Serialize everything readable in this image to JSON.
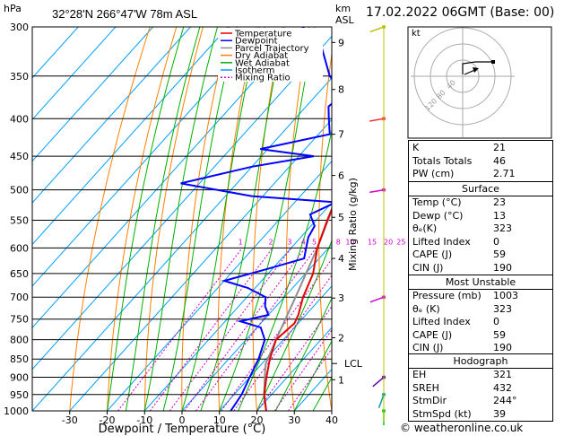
{
  "station": {
    "location": "32°28'N  266°47'W  78m  ASL",
    "datetime": "17.02.2022  06GMT  (Base: 00)",
    "copyright": "© weatheronline.co.uk"
  },
  "legend": [
    {
      "label": "Temperature",
      "color": "#e00000",
      "dash": ""
    },
    {
      "label": "Dewpoint",
      "color": "#0000ff",
      "dash": ""
    },
    {
      "label": "Parcel Trajectory",
      "color": "#909090",
      "dash": ""
    },
    {
      "label": "Dry Adiabat",
      "color": "#ff8000",
      "dash": ""
    },
    {
      "label": "Wet Adiabat",
      "color": "#00b000",
      "dash": ""
    },
    {
      "label": "Isotherm",
      "color": "#00a0ff",
      "dash": ""
    },
    {
      "label": "Mixing Ratio",
      "color": "#d000d0",
      "dash": "2,2"
    }
  ],
  "indices": [
    {
      "label": "K",
      "value": "21"
    },
    {
      "label": "Totals Totals",
      "value": "46"
    },
    {
      "label": "PW (cm)",
      "value": "2.71"
    }
  ],
  "surface": {
    "title": "Surface",
    "rows": [
      {
        "label": "Temp (°C)",
        "value": "23"
      },
      {
        "label": "Dewp (°C)",
        "value": "13"
      },
      {
        "label": "θₑ(K)",
        "value": "323"
      },
      {
        "label": "Lifted Index",
        "value": "0"
      },
      {
        "label": "CAPE (J)",
        "value": "59"
      },
      {
        "label": "CIN (J)",
        "value": "190"
      }
    ]
  },
  "most_unstable": {
    "title": "Most Unstable",
    "rows": [
      {
        "label": "Pressure (mb)",
        "value": "1003"
      },
      {
        "label": "θₑ (K)",
        "value": "323"
      },
      {
        "label": "Lifted Index",
        "value": "0"
      },
      {
        "label": "CAPE (J)",
        "value": "59"
      },
      {
        "label": "CIN (J)",
        "value": "190"
      }
    ]
  },
  "hodograph": {
    "title": "Hodograph",
    "label": "kt",
    "ring_labels": [
      "40",
      "80",
      "120"
    ],
    "rows": [
      {
        "label": "EH",
        "value": "321"
      },
      {
        "label": "SREH",
        "value": "432"
      },
      {
        "label": "StmDir",
        "value": "244°"
      },
      {
        "label": "StmSpd (kt)",
        "value": "39"
      }
    ]
  },
  "chart_data": {
    "type": "skew-t",
    "xlabel": "Dewpoint / Temperature (°C)",
    "ylabel_left": "hPa",
    "ylabel_right": "Mixing Ratio (g/kg)",
    "km_label": "km\nASL",
    "x_ticks": [
      -30,
      -20,
      -10,
      0,
      10,
      20,
      30,
      40
    ],
    "xlim": [
      -40,
      40
    ],
    "pressure_levels": [
      300,
      350,
      400,
      450,
      500,
      550,
      600,
      650,
      700,
      750,
      800,
      850,
      900,
      950,
      1000
    ],
    "plim": [
      300,
      1000
    ],
    "km_ticks": [
      {
        "km": "1",
        "p": 907
      },
      {
        "km": "2",
        "p": 795
      },
      {
        "km": "3",
        "p": 702
      },
      {
        "km": "4",
        "p": 620
      },
      {
        "km": "5",
        "p": 545
      },
      {
        "km": "6",
        "p": 478
      },
      {
        "km": "7",
        "p": 420
      },
      {
        "km": "8",
        "p": 365
      },
      {
        "km": "9",
        "p": 315
      }
    ],
    "lcl": {
      "label": "LCL",
      "p": 862
    },
    "mixing_ratio_labels": [
      "1",
      "2",
      "3",
      "4",
      "5",
      "8",
      "10",
      "15",
      "20",
      "25"
    ],
    "mixing_ratio_values": [
      1,
      2,
      3,
      4,
      5,
      8,
      10,
      15,
      20,
      25
    ],
    "temperature": [
      {
        "p": 1000,
        "t": 22.5
      },
      {
        "p": 950,
        "t": 18
      },
      {
        "p": 900,
        "t": 14.5
      },
      {
        "p": 850,
        "t": 11
      },
      {
        "p": 800,
        "t": 8
      },
      {
        "p": 760,
        "t": 9
      },
      {
        "p": 740,
        "t": 8
      },
      {
        "p": 700,
        "t": 5
      },
      {
        "p": 650,
        "t": 2
      },
      {
        "p": 600,
        "t": -3
      },
      {
        "p": 550,
        "t": -7
      },
      {
        "p": 500,
        "t": -11
      },
      {
        "p": 450,
        "t": -16
      },
      {
        "p": 400,
        "t": -22
      },
      {
        "p": 350,
        "t": -29
      },
      {
        "p": 300,
        "t": -38
      }
    ],
    "dewpoint": [
      {
        "p": 1000,
        "t": 13
      },
      {
        "p": 950,
        "t": 12
      },
      {
        "p": 900,
        "t": 10
      },
      {
        "p": 850,
        "t": 8
      },
      {
        "p": 800,
        "t": 5
      },
      {
        "p": 770,
        "t": 1
      },
      {
        "p": 755,
        "t": -6
      },
      {
        "p": 740,
        "t": 0
      },
      {
        "p": 720,
        "t": -3
      },
      {
        "p": 700,
        "t": -5
      },
      {
        "p": 680,
        "t": -12
      },
      {
        "p": 665,
        "t": -20
      },
      {
        "p": 640,
        "t": -11
      },
      {
        "p": 620,
        "t": -4
      },
      {
        "p": 600,
        "t": -6
      },
      {
        "p": 580,
        "t": -8
      },
      {
        "p": 560,
        "t": -9
      },
      {
        "p": 540,
        "t": -13
      },
      {
        "p": 520,
        "t": -9
      },
      {
        "p": 510,
        "t": -33
      },
      {
        "p": 490,
        "t": -55
      },
      {
        "p": 465,
        "t": -40
      },
      {
        "p": 450,
        "t": -26
      },
      {
        "p": 440,
        "t": -42
      },
      {
        "p": 420,
        "t": -27
      },
      {
        "p": 400,
        "t": -31
      },
      {
        "p": 385,
        "t": -34
      },
      {
        "p": 370,
        "t": -33
      },
      {
        "p": 350,
        "t": -41
      },
      {
        "p": 320,
        "t": -50
      },
      {
        "p": 300,
        "t": -60
      }
    ],
    "parcel": [
      {
        "p": 1000,
        "t": 22.5
      },
      {
        "p": 950,
        "t": 18
      },
      {
        "p": 900,
        "t": 14
      },
      {
        "p": 862,
        "t": 11
      },
      {
        "p": 800,
        "t": 8
      },
      {
        "p": 700,
        "t": 3
      },
      {
        "p": 600,
        "t": -3
      },
      {
        "p": 500,
        "t": -11
      },
      {
        "p": 450,
        "t": -16
      },
      {
        "p": 400,
        "t": -23
      },
      {
        "p": 350,
        "t": -31
      },
      {
        "p": 300,
        "t": -40
      }
    ],
    "wind_barbs": [
      {
        "p": 1000,
        "dir": 180,
        "spd": 10
      },
      {
        "p": 950,
        "dir": 200,
        "spd": 15
      },
      {
        "p": 900,
        "dir": 230,
        "spd": 30
      },
      {
        "p": 700,
        "dir": 250,
        "spd": 40
      },
      {
        "p": 500,
        "dir": 260,
        "spd": 55
      },
      {
        "p": 400,
        "dir": 260,
        "spd": 75
      },
      {
        "p": 300,
        "dir": 250,
        "spd": 60
      }
    ]
  }
}
